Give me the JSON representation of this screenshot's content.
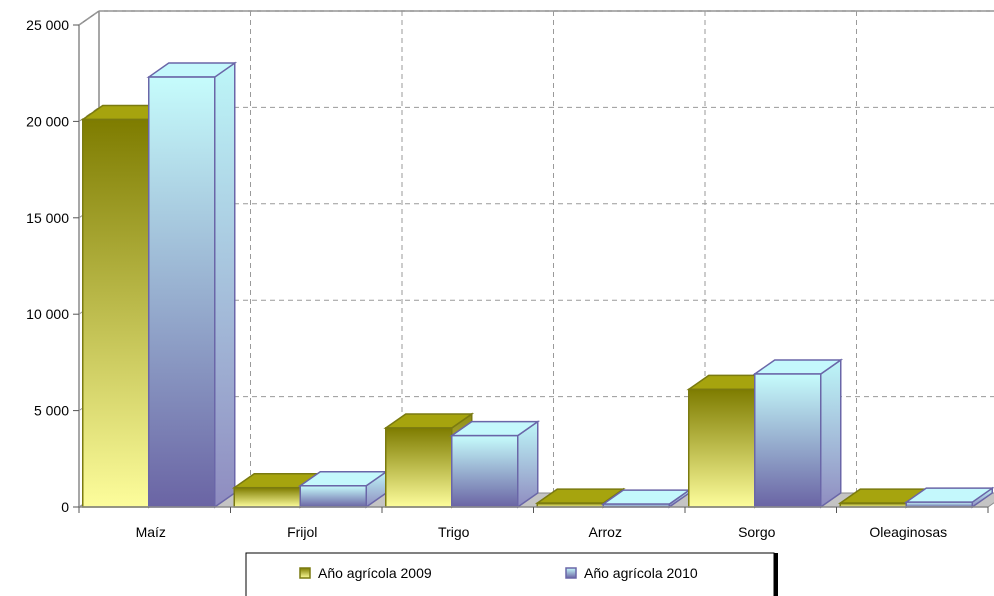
{
  "chart_data": {
    "type": "bar",
    "title": "",
    "xlabel": "",
    "ylabel": "",
    "categories": [
      "Maíz",
      "Frijol",
      "Trigo",
      "Arroz",
      "Sorgo",
      "Oleaginosas"
    ],
    "series": [
      {
        "name": "Año agrícola 2009",
        "values": [
          20100,
          1000,
          4100,
          200,
          6100,
          200
        ]
      },
      {
        "name": "Año agrícola 2010",
        "values": [
          22300,
          1100,
          3700,
          150,
          6900,
          250
        ]
      }
    ],
    "ylim": [
      0,
      25000
    ],
    "yticks": [
      0,
      5000,
      10000,
      15000,
      20000,
      25000
    ],
    "ytick_labels": [
      "0",
      "5 000",
      "10 000",
      "15 000",
      "20 000",
      "25 000"
    ],
    "grid": true,
    "legend_position": "bottom",
    "colors": {
      "series_2009_top": "#7e7c00",
      "series_2009_bottom": "#fdfd9c",
      "series_2009_edge": "#7a7a10",
      "series_2010_top": "#c6fcfc",
      "series_2010_bottom": "#6a64a4",
      "series_2010_edge": "#6a66a8"
    }
  }
}
